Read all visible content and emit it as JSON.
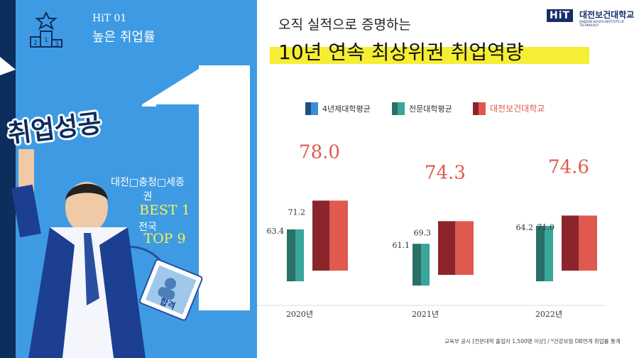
{
  "panel": {
    "number": "HiT 01",
    "subtitle": "높은 취업률",
    "stamp": "취업성공",
    "region_line1": "대전□충청□세종",
    "region_line2": "권",
    "best": "BEST 1",
    "nation": "전국",
    "top": "TOP 9",
    "badge_text": "합격",
    "big_number": "1"
  },
  "header": {
    "top_line": "오직 실적으로 증명하는",
    "main_line": "10년 연속 최상위권 취업역량",
    "highlight_color": "#f5ee33"
  },
  "logo": {
    "mark": "HiT",
    "name": "대전보건대학교",
    "sub": "DAEJEON HEALTH INSTITUTE OF TECHNOLOGY"
  },
  "footnote": "교육부 공시 [전문대학 졸업자 1,500명 이상] / *건강보험 DB연계 취업률 통계",
  "chart_data": {
    "type": "bar",
    "categories": [
      "2020년",
      "2021년",
      "2022년"
    ],
    "series": [
      {
        "name": "4년제대학평균",
        "values": [
          null,
          null,
          null
        ],
        "color": "#3a8fd6"
      },
      {
        "name": "전문대학평균",
        "values": [
          63.4,
          61.1,
          64.2
        ],
        "color": "#3aa59a"
      },
      {
        "name": "대전보건대학교",
        "values": [
          78.0,
          74.3,
          74.6
        ],
        "color": "#e0594f"
      }
    ],
    "series_b_values_shown": [
      71.2,
      69.3,
      71.0
    ],
    "legend_position": "top",
    "ylim": [
      50,
      80
    ],
    "grid": false
  }
}
